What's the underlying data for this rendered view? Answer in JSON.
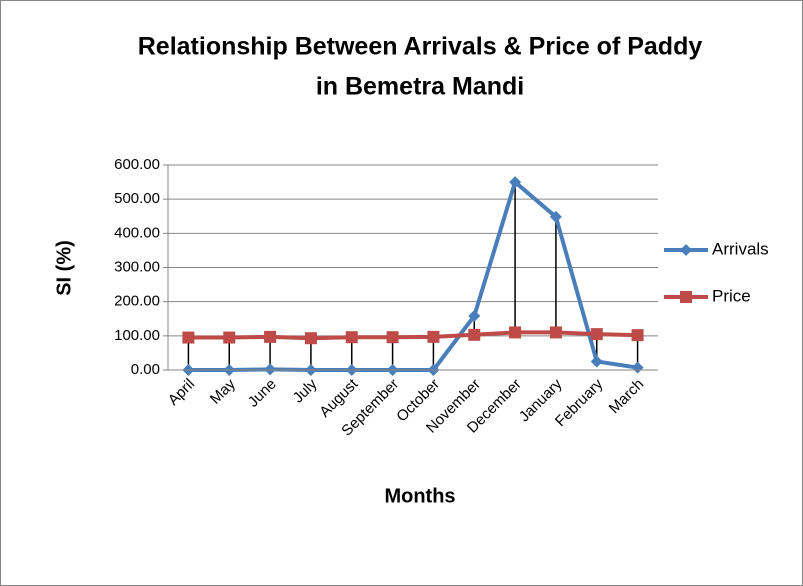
{
  "chart_data": {
    "type": "line",
    "title": [
      "Relationship Between Arrivals & Price of Paddy",
      "in Bemetra Mandi"
    ],
    "x_label": "Months",
    "y_label": "SI (%)",
    "categories": [
      "April",
      "May",
      "June",
      "July",
      "August",
      "September",
      "October",
      "November",
      "December",
      "January",
      "February",
      "March"
    ],
    "series": [
      {
        "name": "Arrivals",
        "color": "#4a7ebb",
        "marker": "diamond",
        "values": [
          0,
          0,
          2,
          0,
          0,
          0,
          0,
          158,
          550,
          448,
          25,
          7
        ]
      },
      {
        "name": "Price",
        "color": "#be4b48",
        "marker": "square",
        "values": [
          95,
          95,
          97,
          93,
          96,
          96,
          97,
          103,
          110,
          110,
          105,
          102
        ]
      }
    ],
    "ylim": [
      0,
      600
    ],
    "yticks": [
      {
        "value": 0,
        "label": "0.00"
      },
      {
        "value": 100,
        "label": "100.00"
      },
      {
        "value": 200,
        "label": "200.00"
      },
      {
        "value": 300,
        "label": "300.00"
      },
      {
        "value": 400,
        "label": "400.00"
      },
      {
        "value": 500,
        "label": "500.00"
      },
      {
        "value": 600,
        "label": "600.00"
      }
    ],
    "grid": true,
    "drop_lines": true,
    "legend": "right"
  }
}
